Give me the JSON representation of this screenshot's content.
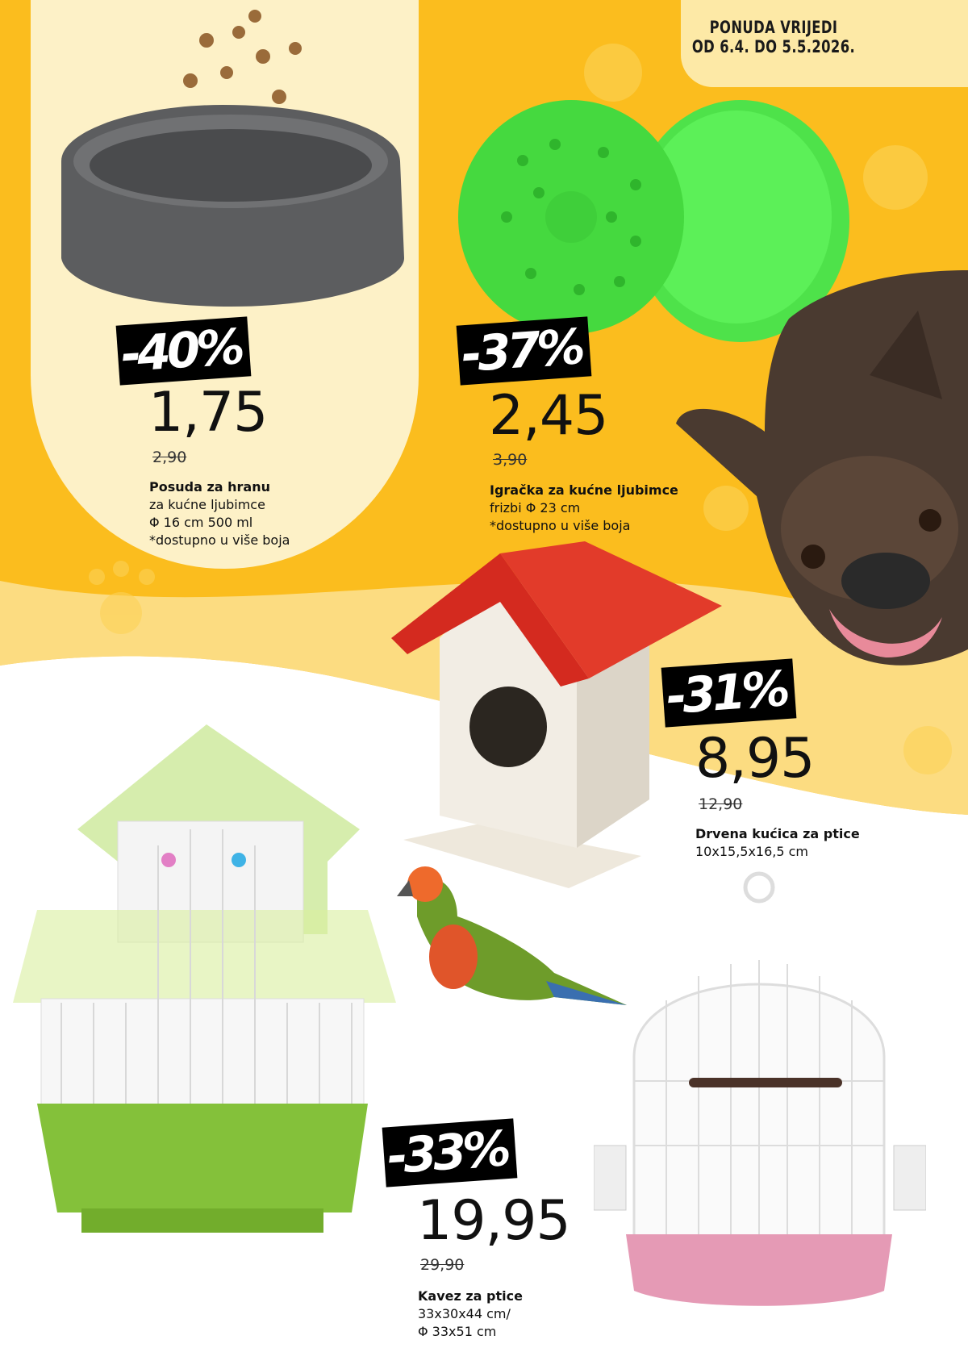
{
  "validity": {
    "line1": "PONUDA VRIJEDI",
    "line2": "OD 6.4. DO 5.5.2026."
  },
  "colors": {
    "background_yellow": "#fbbd1e",
    "cream_panel": "#fdf1c7",
    "date_box": "#fde9a6",
    "badge": "#000000"
  },
  "products": [
    {
      "discount": "-40%",
      "price": "1,75",
      "old_price": "2,90",
      "title": "Posuda za hranu",
      "lines": [
        "za kućne ljubimce",
        "Φ 16 cm 500 ml",
        "*dostupno u više boja"
      ],
      "image": "grey-pet-bowl-with-kibble"
    },
    {
      "discount": "-37%",
      "price": "2,45",
      "old_price": "3,90",
      "title": "Igračka za kućne ljubimce",
      "lines": [
        "frizbi Φ 23 cm",
        "*dostupno u više boja"
      ],
      "image": "green-frisbee"
    },
    {
      "discount": "-31%",
      "price": "8,95",
      "old_price": "12,90",
      "title": "Drvena kućica za ptice",
      "lines": [
        "10x15,5x16,5 cm"
      ],
      "image": "wooden-birdhouse-red-roof"
    },
    {
      "discount": "-33%",
      "price": "19,95",
      "old_price": "29,90",
      "title": "Kavez za ptice",
      "lines": [
        "33x30x44 cm/",
        "Φ 33x51 cm"
      ],
      "image": "bird-cages"
    }
  ]
}
